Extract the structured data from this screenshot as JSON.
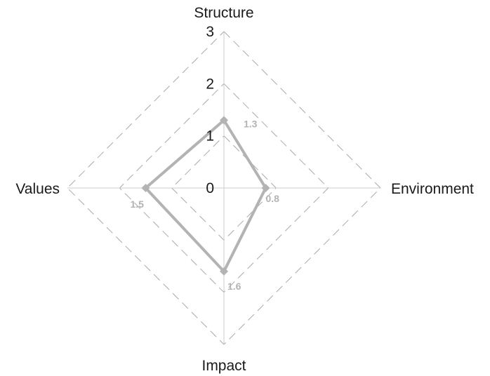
{
  "chart_data": {
    "type": "radar",
    "axes": [
      "Structure",
      "Environment",
      "Impact",
      "Values"
    ],
    "range": [
      0,
      3
    ],
    "ticks": [
      0,
      1,
      2,
      3
    ],
    "tick_labels": [
      "0",
      "1",
      "2",
      "3"
    ],
    "grid": "dashed",
    "series": [
      {
        "values": [
          1.3,
          0.8,
          1.6,
          1.5
        ],
        "labels": [
          "1.3",
          "0.8",
          "1.6",
          "1.5"
        ]
      }
    ],
    "colors": {
      "series": "#b3b3b3",
      "grid": "#aaaaaa",
      "spoke": "#cccccc",
      "text": "#1a1a1a"
    }
  }
}
